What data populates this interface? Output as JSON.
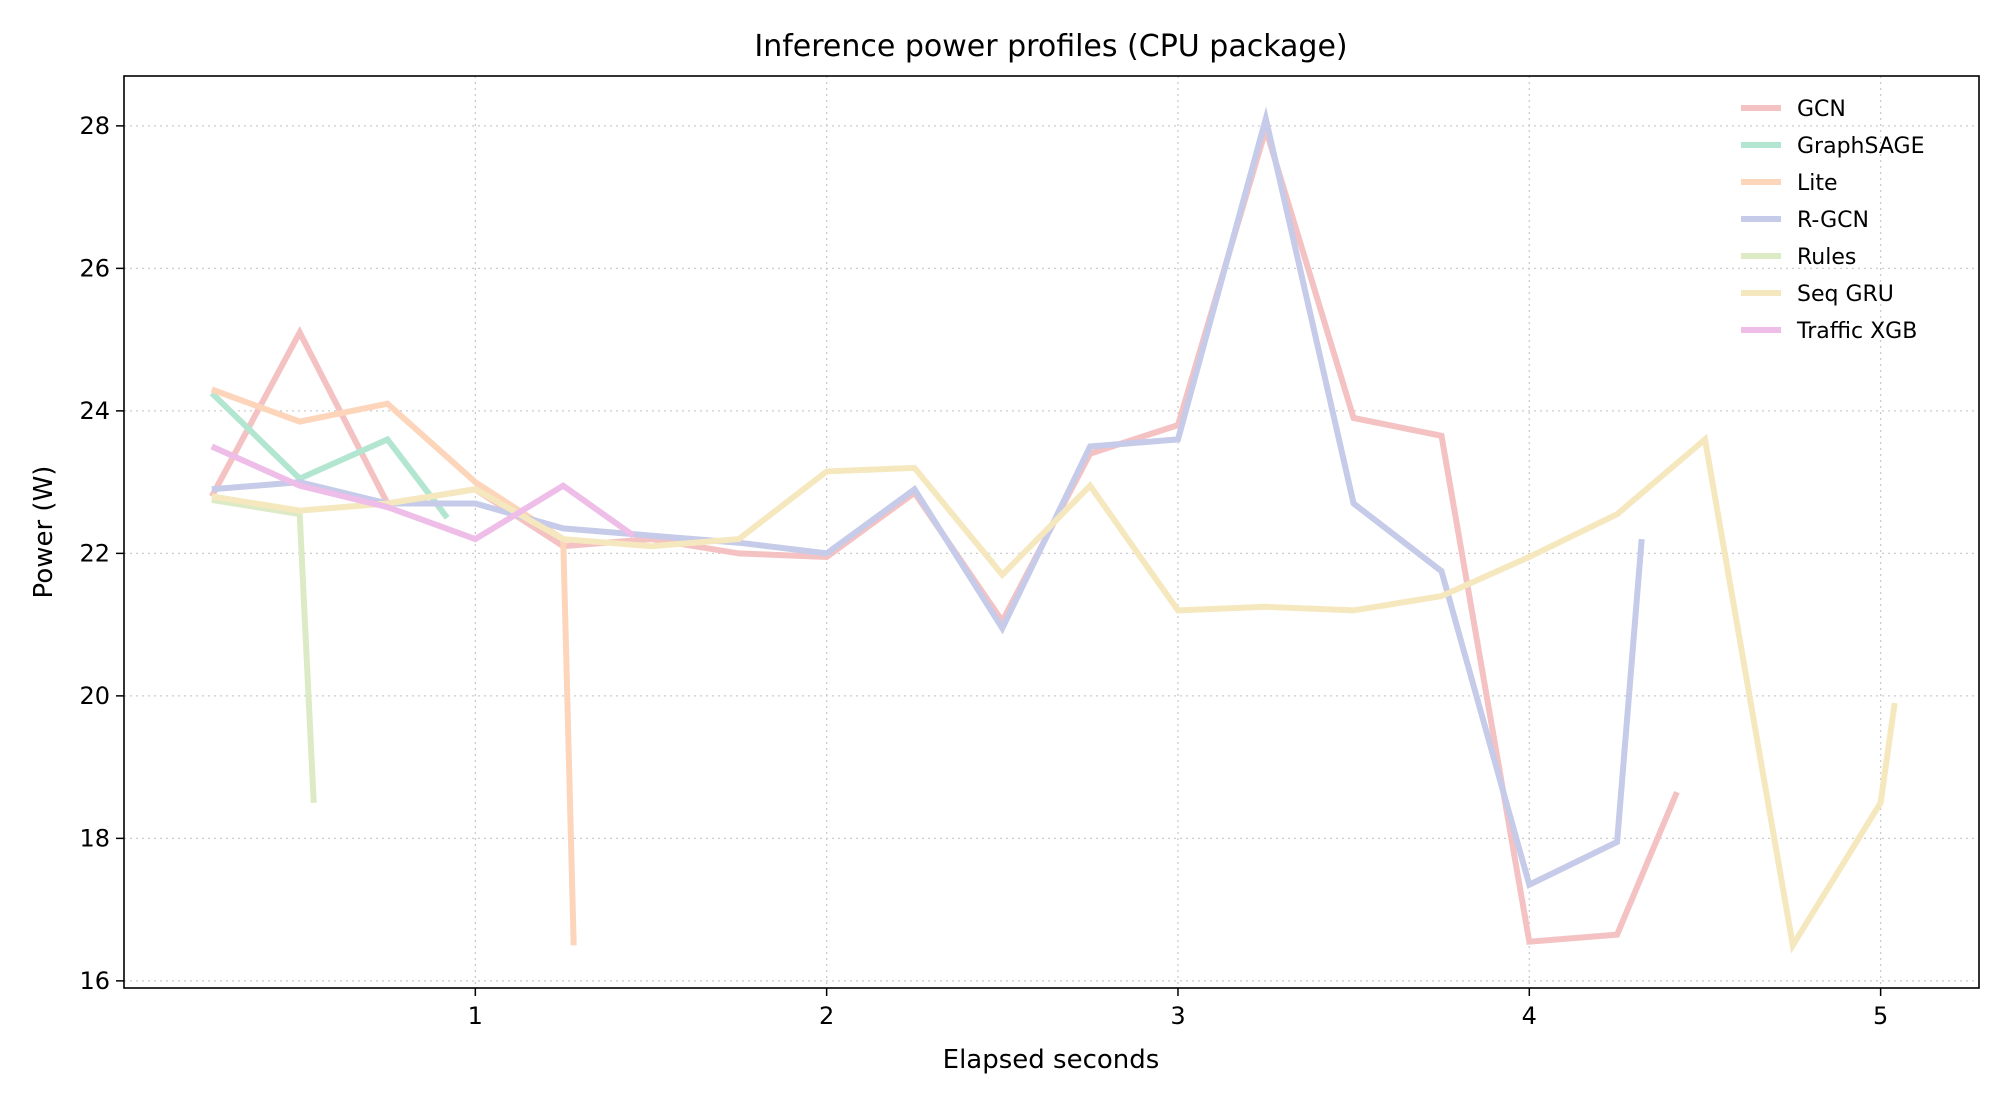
{
  "chart_data": {
    "type": "line",
    "title": "Inference power profiles (CPU package)",
    "xlabel": "Elapsed seconds",
    "ylabel": "Power (W)",
    "xlim": [
      0.0,
      5.28
    ],
    "ylim": [
      15.9,
      28.7
    ],
    "xticks": [
      1,
      2,
      3,
      4,
      5
    ],
    "yticks": [
      16,
      18,
      20,
      22,
      24,
      26,
      28
    ],
    "grid": true,
    "legend_position": "top-right",
    "series": [
      {
        "name": "GCN",
        "color": "#f4c2c2",
        "x": [
          0.25,
          0.5,
          0.75,
          1.0,
          1.25,
          1.5,
          1.75,
          2.0,
          2.25,
          2.5,
          2.75,
          3.0,
          3.25,
          3.5,
          3.75,
          4.0,
          4.25,
          4.42
        ],
        "y": [
          22.8,
          25.1,
          22.7,
          22.9,
          22.1,
          22.2,
          22.0,
          21.95,
          22.85,
          21.05,
          23.4,
          23.8,
          27.95,
          23.9,
          23.65,
          16.55,
          16.65,
          18.65
        ]
      },
      {
        "name": "GraphSAGE",
        "color": "#b3e6d1",
        "x": [
          0.25,
          0.5,
          0.75,
          0.92
        ],
        "y": [
          24.25,
          23.05,
          23.6,
          22.5
        ]
      },
      {
        "name": "Lite",
        "color": "#fdd5bb",
        "x": [
          0.25,
          0.5,
          0.75,
          1.0,
          1.25,
          1.28
        ],
        "y": [
          24.3,
          23.85,
          24.1,
          23.0,
          22.2,
          16.5
        ]
      },
      {
        "name": "R-GCN",
        "color": "#c5cbe8",
        "x": [
          0.25,
          0.5,
          0.75,
          1.0,
          1.25,
          1.5,
          1.75,
          2.0,
          2.25,
          2.5,
          2.75,
          3.0,
          3.25,
          3.5,
          3.75,
          4.0,
          4.25,
          4.32
        ],
        "y": [
          22.9,
          23.0,
          22.7,
          22.7,
          22.35,
          22.25,
          22.15,
          22.0,
          22.9,
          20.95,
          23.5,
          23.6,
          28.1,
          22.7,
          21.75,
          17.35,
          17.95,
          22.2
        ]
      },
      {
        "name": "Rules",
        "color": "#dcebc6",
        "x": [
          0.25,
          0.5,
          0.54
        ],
        "y": [
          22.75,
          22.55,
          18.5
        ]
      },
      {
        "name": "Seq GRU",
        "color": "#f6e8be",
        "x": [
          0.25,
          0.5,
          0.75,
          1.0,
          1.25,
          1.5,
          1.75,
          2.0,
          2.25,
          2.5,
          2.75,
          3.0,
          3.25,
          3.5,
          3.75,
          4.0,
          4.25,
          4.5,
          4.75,
          5.0,
          5.04
        ],
        "y": [
          22.8,
          22.6,
          22.7,
          22.9,
          22.2,
          22.1,
          22.2,
          23.15,
          23.2,
          21.7,
          22.95,
          21.2,
          21.25,
          21.2,
          21.4,
          21.95,
          22.55,
          23.6,
          16.5,
          18.5,
          19.9
        ]
      },
      {
        "name": "Traffic XGB",
        "color": "#eebde8",
        "x": [
          0.25,
          0.5,
          0.75,
          1.0,
          1.25,
          1.45
        ],
        "y": [
          23.5,
          22.95,
          22.65,
          22.2,
          22.95,
          22.25
        ]
      }
    ]
  }
}
